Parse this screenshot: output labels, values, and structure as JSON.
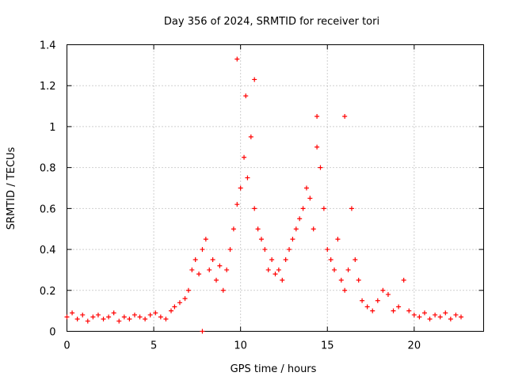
{
  "chart_data": {
    "type": "scatter",
    "title": "Day 356 of 2024, SRMTID for receiver tori",
    "xlabel": "GPS time / hours",
    "ylabel": "SRMTID / TECUs",
    "xlim": [
      0,
      24
    ],
    "ylim": [
      0,
      1.4
    ],
    "xticks": [
      0,
      5,
      10,
      15,
      20
    ],
    "yticks": [
      0,
      0.2,
      0.4,
      0.6,
      0.8,
      1,
      1.2,
      1.4
    ],
    "xtick_labels": [
      "0",
      "5",
      "10",
      "15",
      "20"
    ],
    "ytick_labels": [
      "0",
      "0.2",
      "0.4",
      "0.6",
      "0.8",
      "1",
      "1.2",
      "1.4"
    ],
    "grid": true,
    "marker": "+",
    "color": "#ff0000",
    "series": [
      {
        "name": "SRMTID",
        "x": [
          0.0,
          0.3,
          0.6,
          0.9,
          1.2,
          1.5,
          1.8,
          2.1,
          2.4,
          2.7,
          3.0,
          3.3,
          3.6,
          3.9,
          4.2,
          4.5,
          4.8,
          5.1,
          5.4,
          5.7,
          6.0,
          6.2,
          6.5,
          6.8,
          7.0,
          7.2,
          7.4,
          7.6,
          7.8,
          8.0,
          8.2,
          8.4,
          8.6,
          8.8,
          9.0,
          9.2,
          9.4,
          9.6,
          9.8,
          10.0,
          10.2,
          10.4,
          10.6,
          10.8,
          11.0,
          11.2,
          11.4,
          11.6,
          11.8,
          12.0,
          12.2,
          12.4,
          12.6,
          12.8,
          13.0,
          13.2,
          13.4,
          13.6,
          13.8,
          14.0,
          14.2,
          14.4,
          14.6,
          14.8,
          15.0,
          15.2,
          15.4,
          15.6,
          15.8,
          16.0,
          16.2,
          16.4,
          16.6,
          16.8,
          17.0,
          17.3,
          17.6,
          17.9,
          18.2,
          18.5,
          18.8,
          19.1,
          19.4,
          19.7,
          20.0,
          20.3,
          20.6,
          20.9,
          21.2,
          21.5,
          21.8,
          22.1,
          22.4,
          22.7,
          9.8,
          10.3,
          10.8,
          14.4,
          16.0,
          7.8
        ],
        "y": [
          0.07,
          0.09,
          0.06,
          0.08,
          0.05,
          0.07,
          0.08,
          0.06,
          0.07,
          0.09,
          0.05,
          0.07,
          0.06,
          0.08,
          0.07,
          0.06,
          0.08,
          0.09,
          0.07,
          0.06,
          0.1,
          0.12,
          0.14,
          0.16,
          0.2,
          0.3,
          0.35,
          0.28,
          0.4,
          0.45,
          0.3,
          0.35,
          0.25,
          0.32,
          0.2,
          0.3,
          0.4,
          0.5,
          0.62,
          0.7,
          0.85,
          0.75,
          0.95,
          0.6,
          0.5,
          0.45,
          0.4,
          0.3,
          0.35,
          0.28,
          0.3,
          0.25,
          0.35,
          0.4,
          0.45,
          0.5,
          0.55,
          0.6,
          0.7,
          0.65,
          0.5,
          0.9,
          0.8,
          0.6,
          0.4,
          0.35,
          0.3,
          0.45,
          0.25,
          0.2,
          0.3,
          0.6,
          0.35,
          0.25,
          0.15,
          0.12,
          0.1,
          0.15,
          0.2,
          0.18,
          0.1,
          0.12,
          0.25,
          0.1,
          0.08,
          0.07,
          0.09,
          0.06,
          0.08,
          0.07,
          0.09,
          0.06,
          0.08,
          0.07,
          1.33,
          1.15,
          1.23,
          1.05,
          1.05,
          0.0
        ]
      }
    ]
  }
}
